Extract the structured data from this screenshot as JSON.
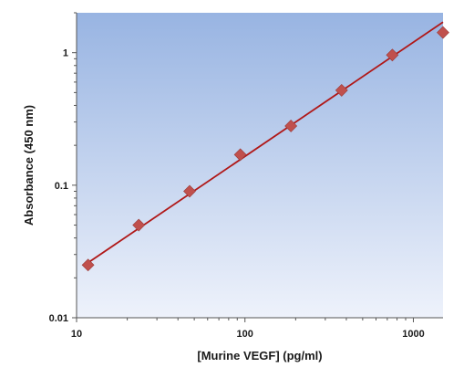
{
  "chart_data": {
    "type": "scatter",
    "xlabel": "[Murine VEGF] (pg/ml)",
    "ylabel": "Absorbance (450 nm)",
    "x_scale": "log",
    "y_scale": "log",
    "xlim": [
      10,
      1500
    ],
    "ylim": [
      0.01,
      2
    ],
    "x_ticks": [
      10,
      100,
      1000
    ],
    "x_tick_labels": [
      "10",
      "100",
      "1000"
    ],
    "y_ticks": [
      0.01,
      0.1,
      1
    ],
    "y_tick_labels": [
      "0.01",
      "0.1",
      "1"
    ],
    "grid": false,
    "legend": "none",
    "series": [
      {
        "type": "scatter",
        "marker": "diamond",
        "color": "#c0504d",
        "x": [
          11.7,
          23.4,
          46.9,
          93.8,
          187.5,
          375,
          750,
          1500
        ],
        "y": [
          0.025,
          0.05,
          0.09,
          0.17,
          0.28,
          0.52,
          0.96,
          1.42
        ]
      },
      {
        "type": "line",
        "color": "#b01818",
        "x": [
          11.7,
          1500
        ],
        "y": [
          0.026,
          1.7
        ]
      }
    ],
    "colors": {
      "plot_bg_top": "#98b4e2",
      "plot_bg_bottom": "#eef2fb",
      "axis": "#555555"
    }
  }
}
